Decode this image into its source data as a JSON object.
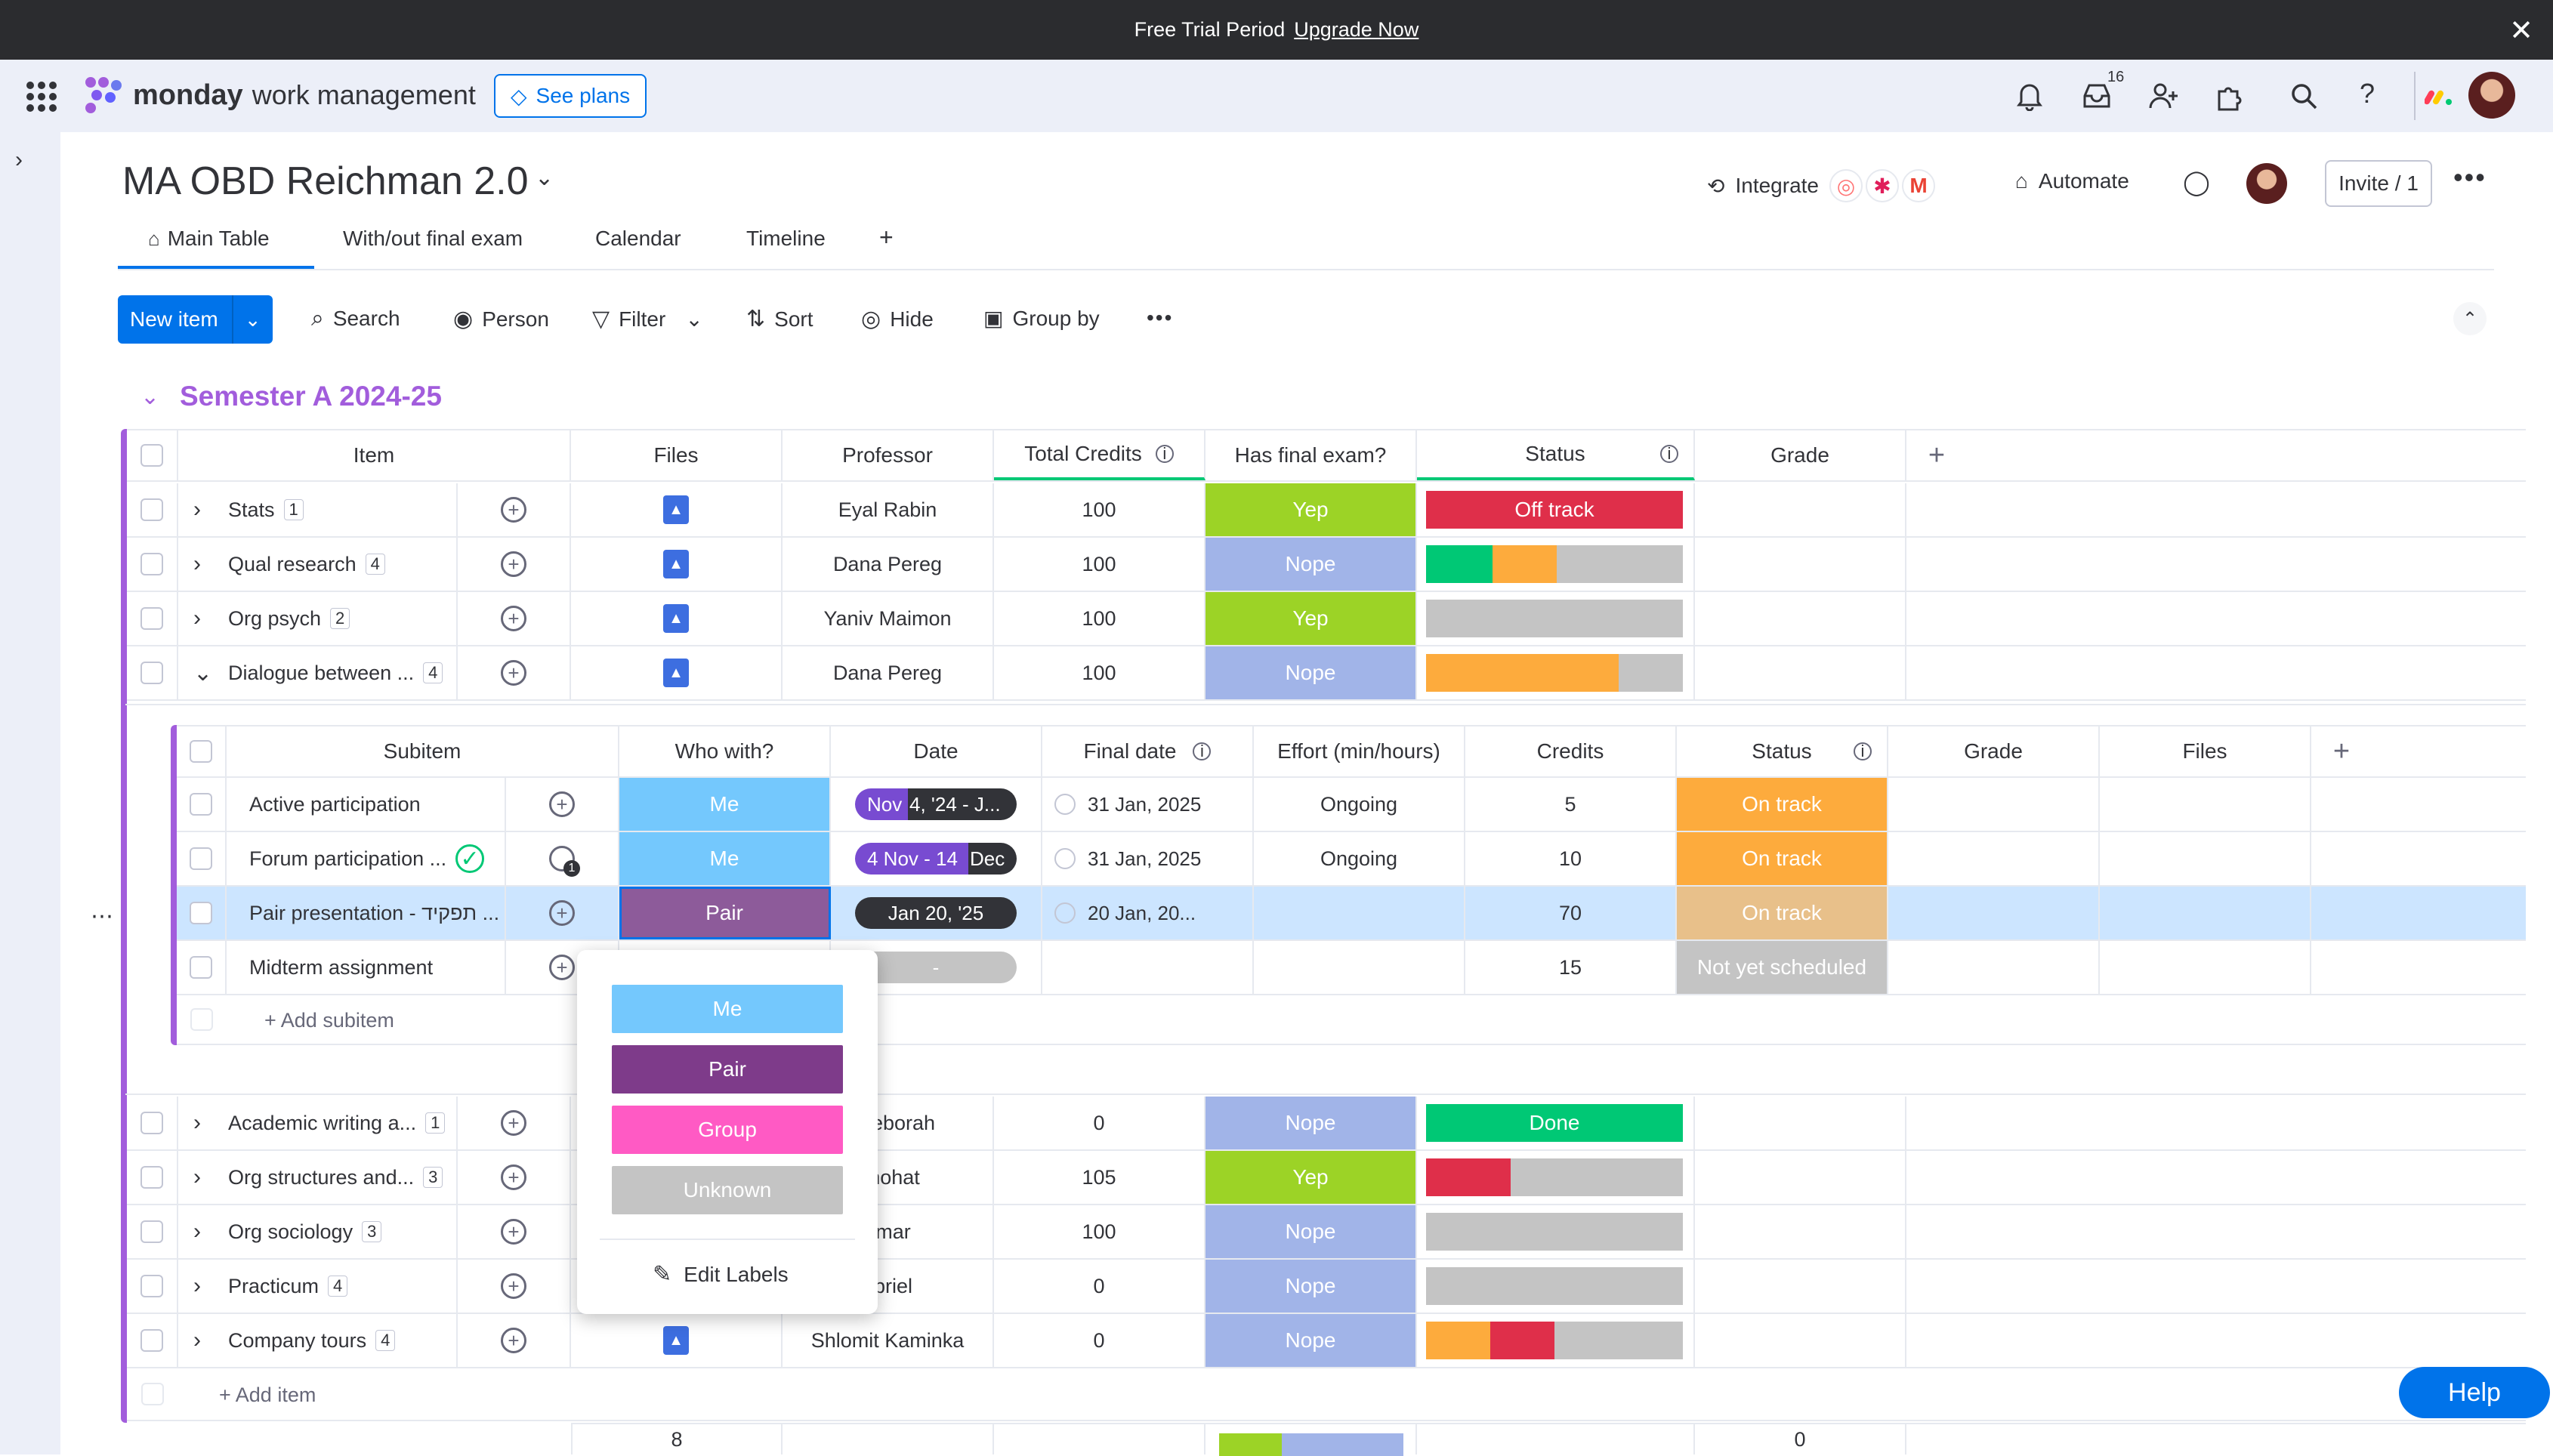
{
  "banner": {
    "message": "Free Trial Period",
    "link": "Upgrade Now"
  },
  "app": {
    "brand_bold": "monday",
    "brand_rest": "work management",
    "see_plans": "See plans",
    "inbox_count": "16"
  },
  "board": {
    "title": "MA OBD Reichman 2.0",
    "integrate": "Integrate",
    "automate": "Automate",
    "invite": "Invite / 1",
    "tabs": [
      "Main Table",
      "With/out final exam",
      "Calendar",
      "Timeline",
      "+"
    ],
    "toolbar": {
      "new_item": "New item",
      "search": "Search",
      "person": "Person",
      "filter": "Filter",
      "sort": "Sort",
      "hide": "Hide",
      "group_by": "Group by"
    }
  },
  "group": {
    "title": "Semester A 2024-25",
    "columns": [
      "Item",
      "Files",
      "Professor",
      "Total Credits",
      "Has final exam?",
      "Status",
      "Grade"
    ],
    "rows_top": [
      {
        "name": "Stats",
        "count": "1",
        "professor": "Eyal Rabin",
        "credits": "100",
        "exam": "Yep",
        "status": "Off track"
      },
      {
        "name": "Qual research",
        "count": "4",
        "professor": "Dana Pereg",
        "credits": "100",
        "exam": "Nope",
        "status": ""
      },
      {
        "name": "Org psych",
        "count": "2",
        "professor": "Yaniv Maimon",
        "credits": "100",
        "exam": "Yep",
        "status": ""
      },
      {
        "name": "Dialogue between ...",
        "count": "4",
        "professor": "Dana Pereg",
        "credits": "100",
        "exam": "Nope",
        "status": ""
      }
    ],
    "rows_bottom": [
      {
        "name": "Academic writing a...",
        "count": "1",
        "professor": "d Deborah",
        "credits": "0",
        "exam": "Nope",
        "status": "Done"
      },
      {
        "name": "Org structures and...",
        "count": "3",
        "professor": "Shohat",
        "credits": "105",
        "exam": "Yep",
        "status": ""
      },
      {
        "name": "Org sociology",
        "count": "3",
        "professor": "amar",
        "credits": "100",
        "exam": "Nope",
        "status": ""
      },
      {
        "name": "Practicum",
        "count": "4",
        "professor": "abriel",
        "credits": "0",
        "exam": "Nope",
        "status": ""
      },
      {
        "name": "Company tours",
        "count": "4",
        "professor": "Shlomit Kaminka",
        "credits": "0",
        "exam": "Nope",
        "status": ""
      }
    ],
    "add_item": "+ Add item",
    "footer": {
      "files_total": "8",
      "grade_total": "0"
    }
  },
  "subitems": {
    "columns": [
      "Subitem",
      "Who with?",
      "Date",
      "Final date",
      "Effort (min/hours)",
      "Credits",
      "Status",
      "Grade",
      "Files"
    ],
    "rows": [
      {
        "name": "Active participation",
        "who": "Me",
        "date_a": "Nov",
        "date_b": "4, '24 - J...",
        "final": "31 Jan, 2025",
        "effort": "Ongoing",
        "credits": "5",
        "status": "On track"
      },
      {
        "name": "Forum participation ...",
        "who": "Me",
        "date_a": "4 Nov - 14",
        "date_b": "Dec",
        "final": "31 Jan, 2025",
        "effort": "Ongoing",
        "credits": "10",
        "status": "On track"
      },
      {
        "name": "Pair presentation - תפקיד ...",
        "who": "Pair",
        "date_a": "Jan 20, '25",
        "date_b": "",
        "final": "20 Jan, 20...",
        "effort": "",
        "credits": "70",
        "status": "On track"
      },
      {
        "name": "Midterm assignment",
        "who": "",
        "date_a": "-",
        "date_b": "",
        "final": "",
        "effort": "",
        "credits": "15",
        "status": "Not yet scheduled"
      }
    ],
    "add_subitem": "+ Add subitem"
  },
  "popup": {
    "options": [
      "Me",
      "Pair",
      "Group",
      "Unknown"
    ],
    "edit_labels": "Edit Labels"
  },
  "help": "Help",
  "colors": {
    "yep": "#9cd326",
    "nope": "#a1b4e8",
    "off_track": "#df2f4a",
    "on_track": "#fdab3d",
    "done": "#00c875",
    "me": "#74c8fd",
    "pair": "#784bd1",
    "group": "#ff5ac4",
    "unknown": "#c4c4c4",
    "accent": "#a25ddc",
    "primary": "#0073ea"
  }
}
